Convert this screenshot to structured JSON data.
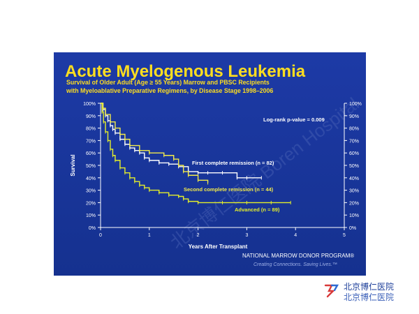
{
  "slide": {
    "title": "Acute Myelogenous Leukemia",
    "subtitle_line1": "Survival of Older Adult (Age ≥ 55 Years) Marrow and PBSC Recipients",
    "subtitle_line2": "with Myeloablative Preparative Regimens, by Disease Stage  1998–2006",
    "logrank": "Log-rank p-value = 0.009",
    "footer_program": "NATIONAL MARROW DONOR PROGRAM®",
    "footer_tagline": "Creating Connections. Saving Lives.™",
    "watermark": "北京博仁医院 Boren Hospital"
  },
  "chart_data": {
    "type": "line",
    "title": "Acute Myelogenous Leukemia",
    "xlabel": "Years After Transplant",
    "ylabel": "Survival",
    "xlim": [
      0,
      5
    ],
    "ylim": [
      0,
      100
    ],
    "x_ticks": [
      0,
      1,
      2,
      3,
      4,
      5
    ],
    "y_ticks": [
      "0%",
      "10%",
      "20%",
      "30%",
      "40%",
      "50%",
      "60%",
      "70%",
      "80%",
      "90%",
      "100%"
    ],
    "grid": false,
    "series": [
      {
        "name": "First complete remission (n = 82)",
        "color": "#ffffff",
        "x": [
          0,
          0.05,
          0.1,
          0.15,
          0.2,
          0.25,
          0.3,
          0.4,
          0.5,
          0.6,
          0.7,
          0.8,
          0.9,
          1.0,
          1.2,
          1.4,
          1.6,
          1.8,
          2.0,
          2.2,
          2.5,
          2.8,
          3.0,
          3.3
        ],
        "values": [
          100,
          95,
          90,
          86,
          82,
          79,
          76,
          71,
          67,
          64,
          62,
          60,
          56,
          54,
          52,
          51,
          49,
          45,
          44,
          44,
          44,
          40,
          40,
          40
        ]
      },
      {
        "name": "Second complete remission (n = 44)",
        "color": "#f2ea4a",
        "x": [
          0,
          0.05,
          0.1,
          0.2,
          0.3,
          0.4,
          0.5,
          0.6,
          0.8,
          1.0,
          1.3,
          1.5,
          1.6,
          1.7,
          1.8,
          2.0,
          2.2
        ],
        "values": [
          100,
          96,
          91,
          85,
          80,
          75,
          71,
          66,
          62,
          60,
          58,
          55,
          50,
          45,
          42,
          38,
          36
        ]
      },
      {
        "name": "Advanced (n = 89)",
        "color": "#e4ee2a",
        "x": [
          0,
          0.03,
          0.06,
          0.1,
          0.15,
          0.2,
          0.25,
          0.3,
          0.4,
          0.5,
          0.6,
          0.7,
          0.8,
          0.9,
          1.0,
          1.2,
          1.4,
          1.6,
          1.7,
          1.8,
          2.0,
          2.5,
          3.0,
          3.5,
          3.9
        ],
        "values": [
          100,
          93,
          85,
          77,
          70,
          63,
          58,
          54,
          48,
          44,
          40,
          37,
          34,
          32,
          30,
          28,
          26,
          25,
          23,
          21,
          20,
          20,
          20,
          20,
          20
        ]
      }
    ],
    "annotations": [
      {
        "text": "Log-rank p-value = 0.009"
      },
      {
        "text": "First complete remission (n = 82)"
      },
      {
        "text": "Second complete remission (n = 44)"
      },
      {
        "text": "Advanced (n = 89)"
      }
    ]
  },
  "corner": {
    "line1": "北京博仁医院",
    "line2": "北京博仁医院"
  }
}
